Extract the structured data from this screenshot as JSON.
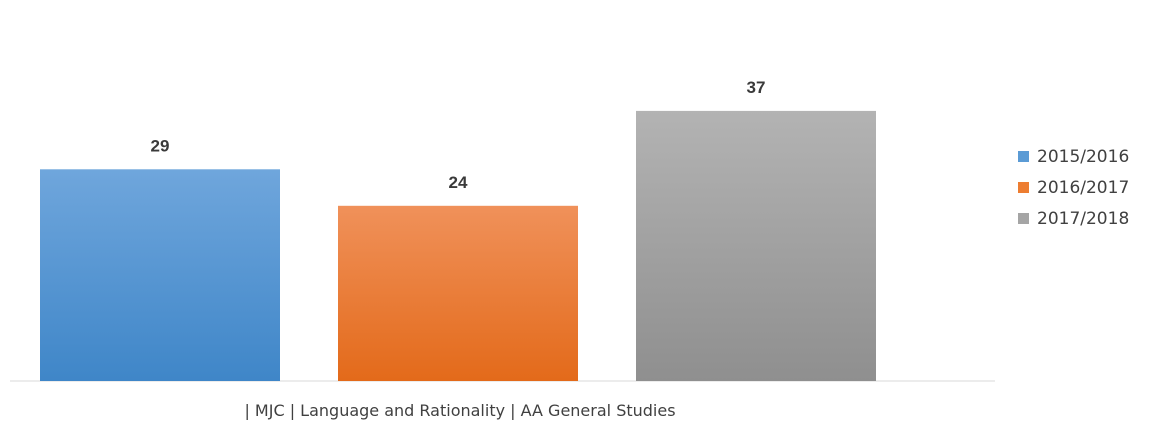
{
  "chart_data": {
    "type": "bar",
    "categories": [
      "| MJC | Language and Rationality | AA General Studies"
    ],
    "series": [
      {
        "name": "2015/2016",
        "values": [
          29
        ],
        "color": "#5b9bd5"
      },
      {
        "name": "2016/2017",
        "values": [
          24
        ],
        "color": "#ed7d31"
      },
      {
        "name": "2017/2018",
        "values": [
          37
        ],
        "color": "#a5a5a5"
      }
    ],
    "title": "",
    "xlabel": "",
    "ylabel": "",
    "ylim": [
      0,
      40
    ],
    "grid": false,
    "legend": "right"
  }
}
